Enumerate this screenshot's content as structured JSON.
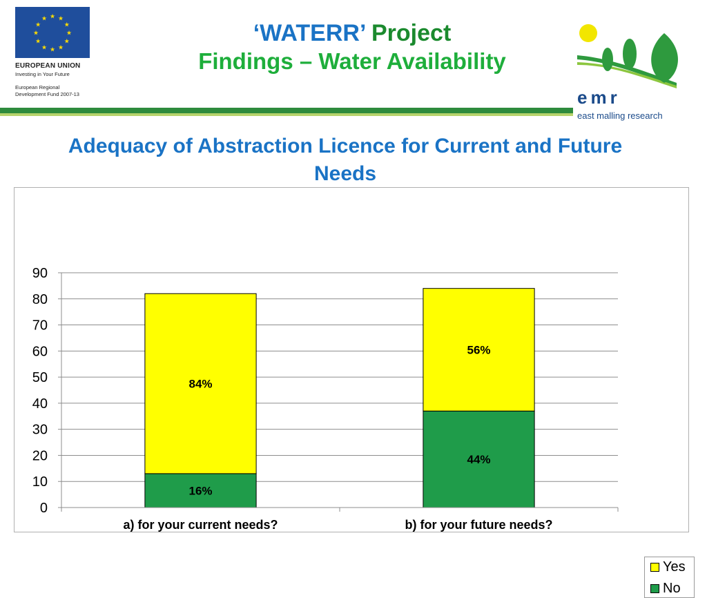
{
  "eu_logo": {
    "name": "EUROPEAN UNION",
    "tagline": "Investing in Your Future",
    "fund_line1": "European Regional",
    "fund_line2": "Development Fund 2007-13"
  },
  "header": {
    "title_quoted": "‘WATERR’",
    "title_project": "Project",
    "subtitle": "Findings – Water Availability"
  },
  "emr_logo": {
    "wordmark": "emr",
    "full_name": "east malling research"
  },
  "colors": {
    "yes": "#ffff00",
    "no": "#1f9c4a",
    "title_blue": "#1a73c5",
    "title_green": "#1eae3b"
  },
  "chart_data": {
    "type": "bar",
    "stacked": true,
    "title": "Adequacy of Abstraction Licence for Current  and Future Needs",
    "categories": [
      "a) for your current needs?",
      "b) for your future needs?"
    ],
    "series": [
      {
        "name": "No",
        "values": [
          13,
          37
        ],
        "labels": [
          "16%",
          "44%"
        ],
        "color": "#1f9c4a"
      },
      {
        "name": "Yes",
        "values": [
          69,
          47
        ],
        "labels": [
          "84%",
          "56%"
        ],
        "color": "#ffff00"
      }
    ],
    "ylim": [
      0,
      90
    ],
    "yticks": [
      0,
      10,
      20,
      30,
      40,
      50,
      60,
      70,
      80,
      90
    ],
    "grid": true,
    "legend": "right",
    "legend_order": [
      "Yes",
      "No"
    ]
  }
}
